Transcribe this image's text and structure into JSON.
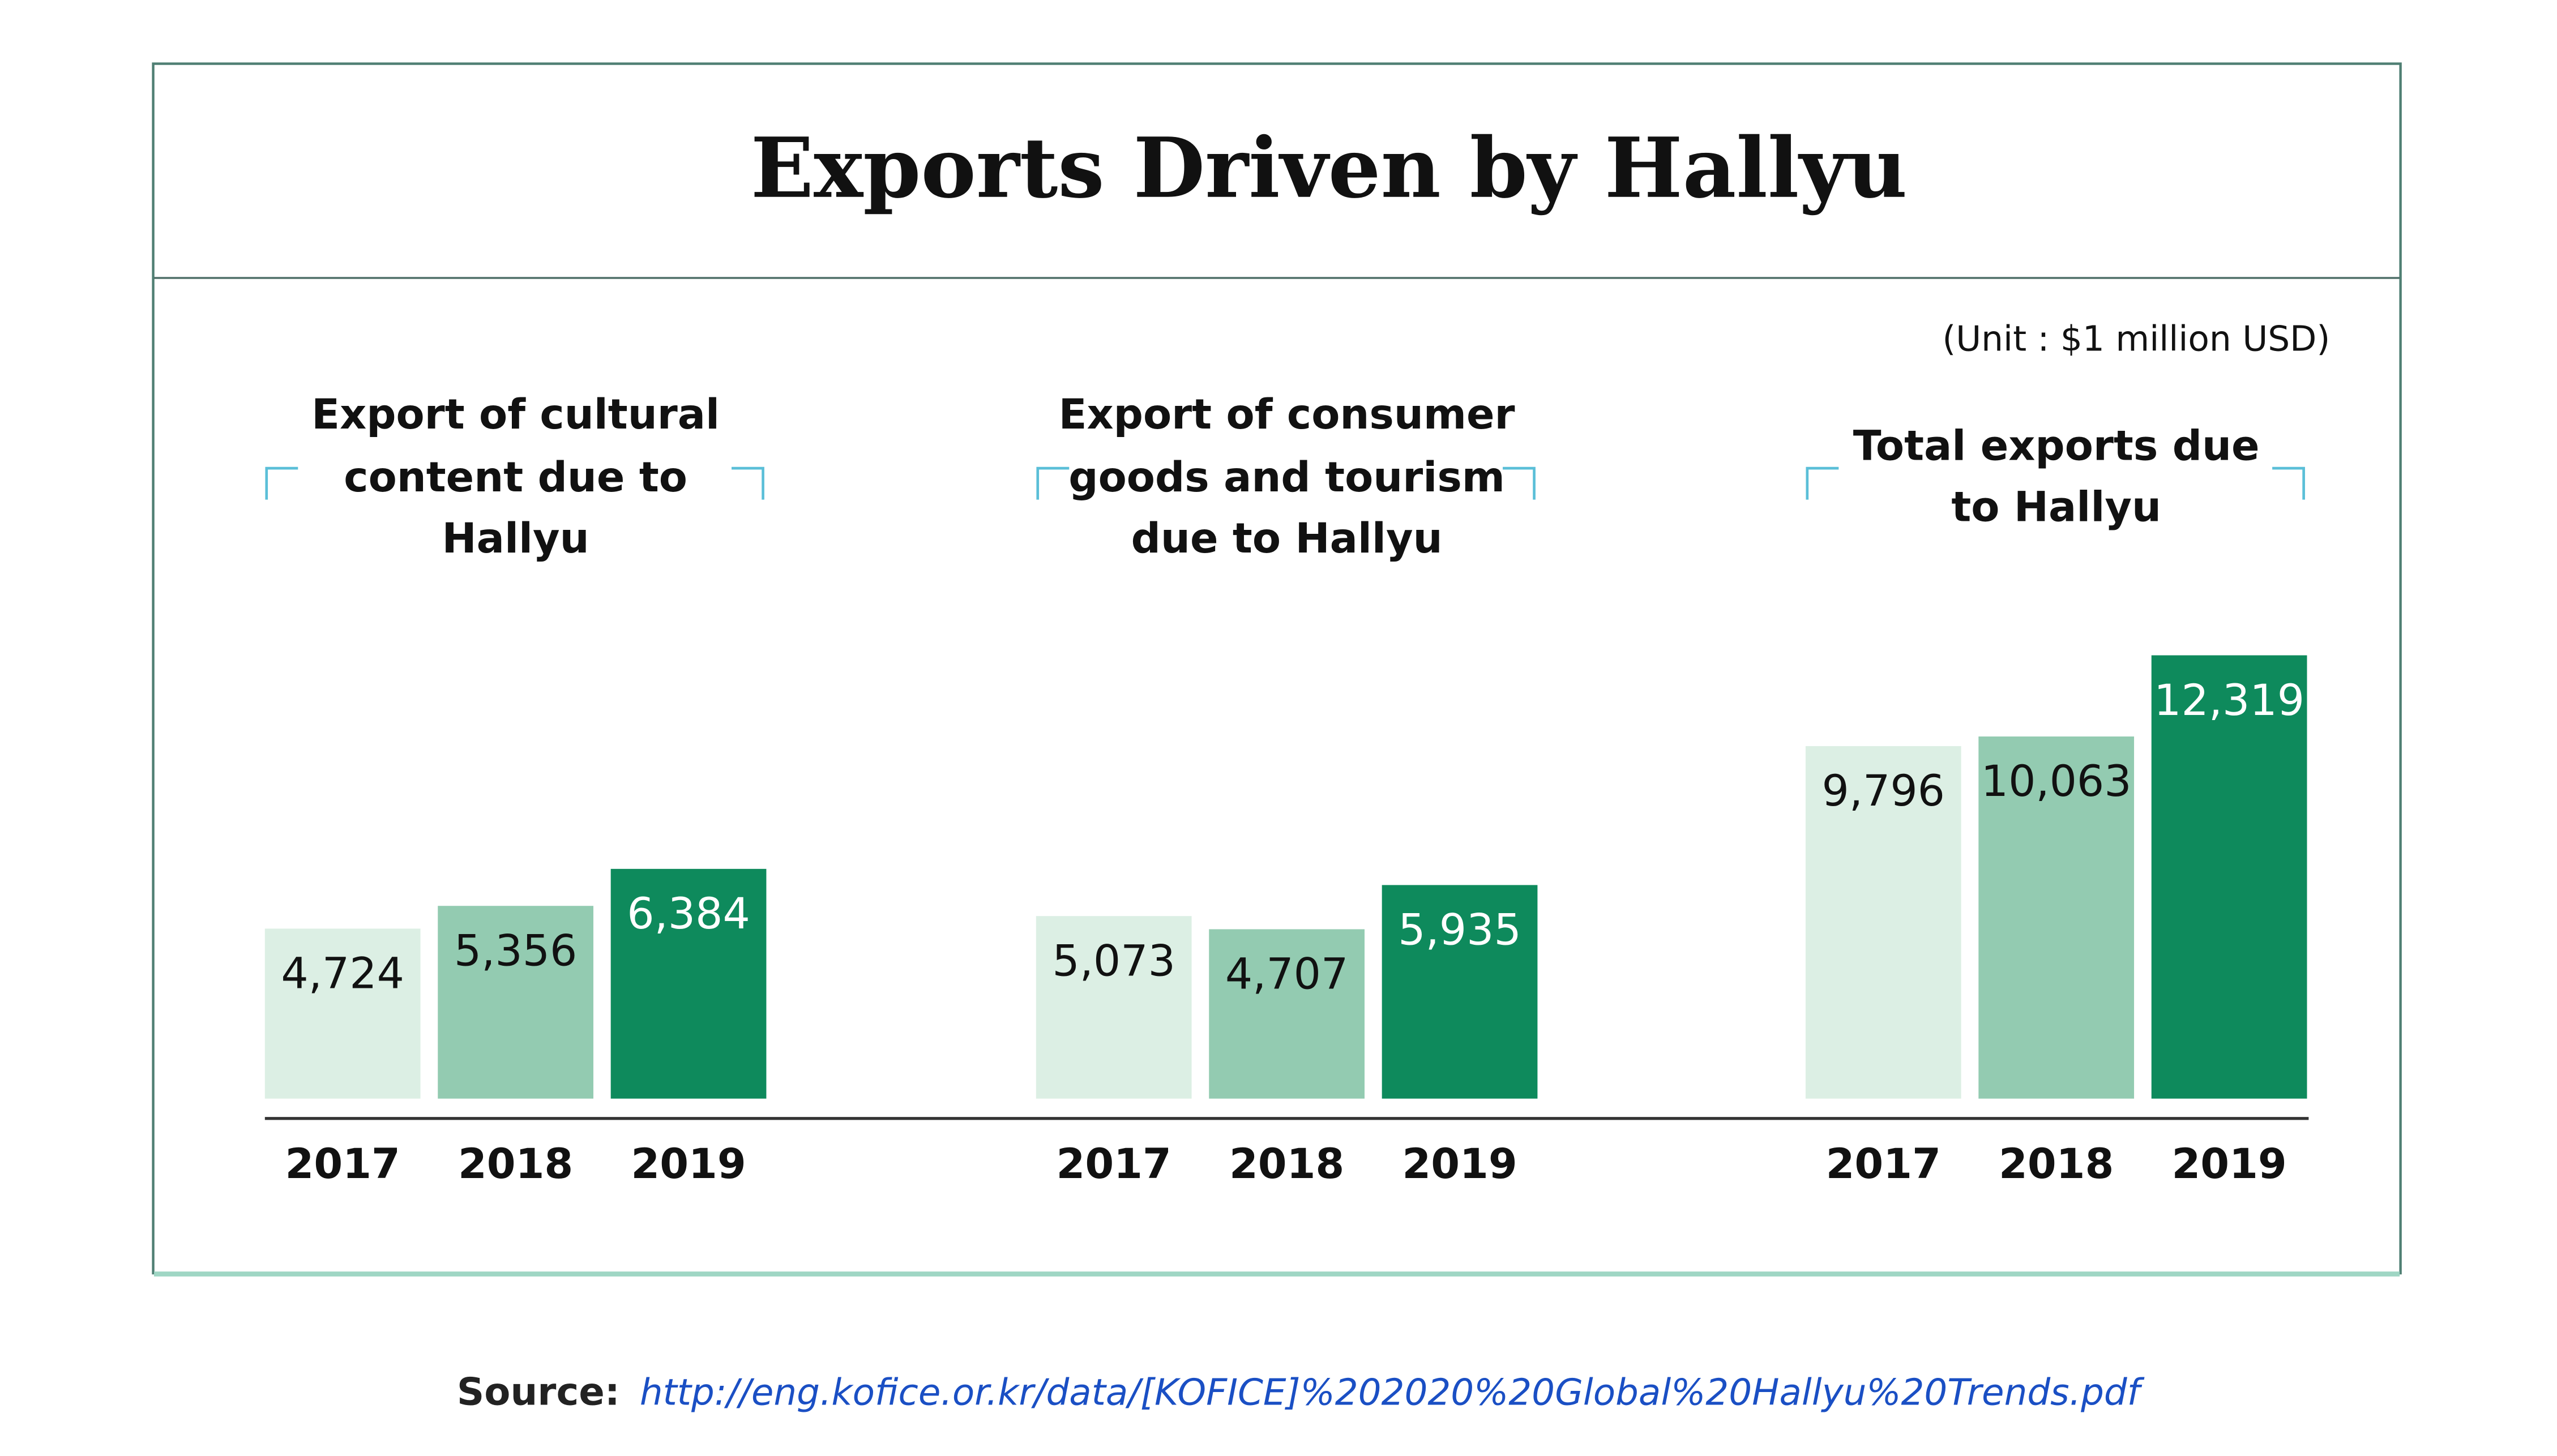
{
  "chart_data": {
    "type": "bar",
    "title": "Exports Driven by Hallyu",
    "unit": "(Unit : $1 million USD)",
    "categories": [
      "2017",
      "2018",
      "2019"
    ],
    "groups": [
      {
        "title_lines": [
          "Export of cultural",
          "content due to",
          "Hallyu"
        ],
        "values": [
          4724,
          5356,
          6384
        ],
        "labels": [
          "4,724",
          "5,356",
          "6,384"
        ]
      },
      {
        "title_lines": [
          "Export of consumer",
          "goods and tourism",
          "due to Hallyu"
        ],
        "values": [
          5073,
          4707,
          5935
        ],
        "labels": [
          "5,073",
          "4,707",
          "5,935"
        ]
      },
      {
        "title_lines": [
          "Total exports due",
          "to Hallyu"
        ],
        "values": [
          9796,
          10063,
          12319
        ],
        "labels": [
          "9,796",
          "10,063",
          "12,319"
        ]
      }
    ],
    "colors": [
      "#dcefe4",
      "#93cbb1",
      "#0e8a5c"
    ],
    "label_colors": [
      "#111111",
      "#111111",
      "#ffffff"
    ],
    "bracket_color": "#5bbfd8",
    "grid": false
  },
  "source": {
    "label": "Source:",
    "url": "http://eng.kofice.or.kr/data/[KOFICE]%202020%20Global%20Hallyu%20Trends.pdf"
  }
}
